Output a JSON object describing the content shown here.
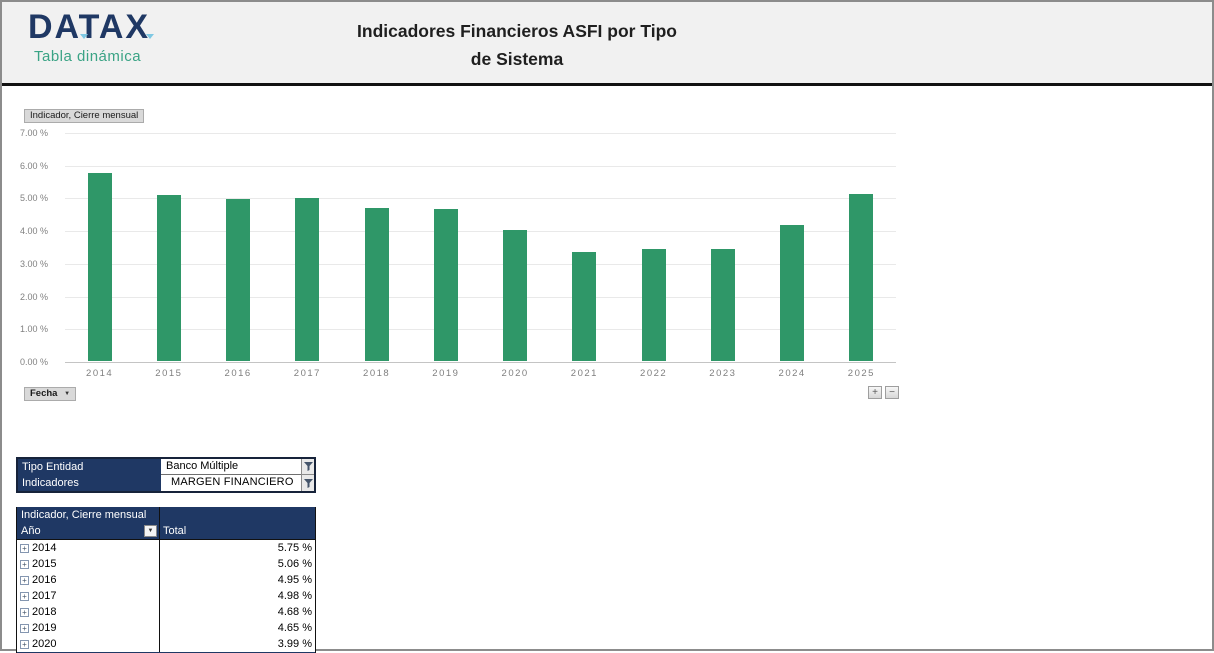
{
  "header": {
    "logo": "DATAX",
    "subtitle": "Tabla dinámica",
    "title_line1": "Indicadores Financieros ASFI por Tipo",
    "title_line2": "de Sistema"
  },
  "chart": {
    "value_field_button": "Indicador, Cierre mensual",
    "axis_field_button": "Fecha",
    "zoom_in_label": "+",
    "zoom_out_label": "−"
  },
  "chart_data": {
    "type": "bar",
    "title": "",
    "xlabel": "",
    "ylabel": "",
    "categories": [
      "2014",
      "2015",
      "2016",
      "2017",
      "2018",
      "2019",
      "2020",
      "2021",
      "2022",
      "2023",
      "2024",
      "2025"
    ],
    "values": [
      5.75,
      5.06,
      4.95,
      4.98,
      4.68,
      4.65,
      3.99,
      3.33,
      3.43,
      3.43,
      4.17,
      5.12
    ],
    "yticks": [
      "7.00 %",
      "6.00 %",
      "5.00 %",
      "4.00 %",
      "3.00 %",
      "2.00 %",
      "1.00 %",
      "0.00 %"
    ],
    "ylim": [
      0,
      7
    ],
    "grid": true,
    "legend": "none",
    "bar_color": "#2f9768"
  },
  "filters": {
    "rows": [
      {
        "label": "Tipo Entidad",
        "value": "Banco Múltiple"
      },
      {
        "label": "Indicadores",
        "value": "MARGEN FINANCIERO"
      }
    ]
  },
  "table": {
    "title": "Indicador, Cierre mensual",
    "row_field": "Año",
    "value_header": "Total",
    "expand_glyph": "+",
    "rows": [
      {
        "year": "2014",
        "total": "5.75 %"
      },
      {
        "year": "2015",
        "total": "5.06 %"
      },
      {
        "year": "2016",
        "total": "4.95 %"
      },
      {
        "year": "2017",
        "total": "4.98 %"
      },
      {
        "year": "2018",
        "total": "4.68 %"
      },
      {
        "year": "2019",
        "total": "4.65 %"
      },
      {
        "year": "2020",
        "total": "3.99 %"
      }
    ]
  },
  "colors": {
    "brand_navy": "#1f3864",
    "brand_teal": "#3aa385",
    "bar_green": "#2f9768",
    "header_bg": "#f1f1f1"
  }
}
